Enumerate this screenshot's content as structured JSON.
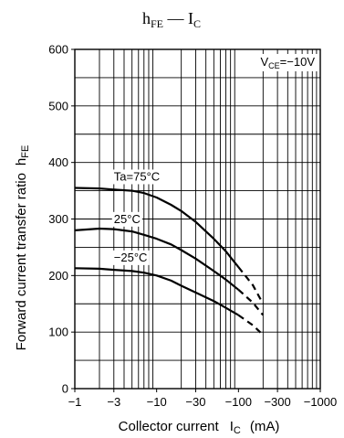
{
  "chart_data": {
    "type": "line",
    "title": "hFE — IC",
    "title_parts": {
      "main": "h",
      "main_sub": "FE",
      "sep": " — ",
      "second": "I",
      "second_sub": "C"
    },
    "xlabel_parts": {
      "text": "Collector current",
      "sym": "I",
      "sym_sub": "C",
      "unit": "(mA)"
    },
    "ylabel_parts": {
      "text": "Forward current transfer ratio",
      "sym": "h",
      "sym_sub": "FE"
    },
    "condition_parts": {
      "sym": "V",
      "sub": "CE",
      "value": "=−10V"
    },
    "legend_placement": "top-right",
    "x_scale": "log",
    "xlim": [
      -1,
      -1000
    ],
    "ylim": [
      0,
      600
    ],
    "grid": true,
    "x_ticks": [
      {
        "value": -1,
        "label": "−1"
      },
      {
        "value": -3,
        "label": "−3"
      },
      {
        "value": -10,
        "label": "−10"
      },
      {
        "value": -30,
        "label": "−30"
      },
      {
        "value": -100,
        "label": "−100"
      },
      {
        "value": -300,
        "label": "−300"
      },
      {
        "value": -1000,
        "label": "−1000"
      }
    ],
    "y_ticks": [
      {
        "value": 0,
        "label": "0"
      },
      {
        "value": 100,
        "label": "100"
      },
      {
        "value": 200,
        "label": "200"
      },
      {
        "value": 300,
        "label": "300"
      },
      {
        "value": 400,
        "label": "400"
      },
      {
        "value": 500,
        "label": "500"
      },
      {
        "value": 600,
        "label": "600"
      }
    ],
    "series": [
      {
        "name": "Ta=75°C",
        "label_at": {
          "x": -3,
          "y": 368
        },
        "points": [
          [
            -1,
            355
          ],
          [
            -2,
            354
          ],
          [
            -3,
            352
          ],
          [
            -5,
            350
          ],
          [
            -7,
            346
          ],
          [
            -10,
            338
          ],
          [
            -15,
            325
          ],
          [
            -20,
            314
          ],
          [
            -30,
            295
          ],
          [
            -50,
            265
          ],
          [
            -70,
            243
          ],
          [
            -100,
            215
          ]
        ],
        "dashed": [
          [
            -100,
            215
          ],
          [
            -150,
            183
          ],
          [
            -200,
            150
          ]
        ]
      },
      {
        "name": "25°C",
        "label_at": {
          "x": -3,
          "y": 293
        },
        "points": [
          [
            -1,
            280
          ],
          [
            -2,
            283
          ],
          [
            -3,
            282
          ],
          [
            -5,
            278
          ],
          [
            -7,
            272
          ],
          [
            -10,
            265
          ],
          [
            -15,
            255
          ],
          [
            -20,
            245
          ],
          [
            -30,
            230
          ],
          [
            -50,
            208
          ],
          [
            -70,
            193
          ],
          [
            -100,
            175
          ]
        ],
        "dashed": [
          [
            -100,
            175
          ],
          [
            -150,
            152
          ],
          [
            -200,
            130
          ]
        ]
      },
      {
        "name": "−25°C",
        "label_at": {
          "x": -3,
          "y": 225
        },
        "points": [
          [
            -1,
            213
          ],
          [
            -2,
            212
          ],
          [
            -3,
            210
          ],
          [
            -5,
            208
          ],
          [
            -7,
            205
          ],
          [
            -10,
            200
          ],
          [
            -15,
            191
          ],
          [
            -20,
            182
          ],
          [
            -30,
            170
          ],
          [
            -50,
            155
          ],
          [
            -70,
            143
          ],
          [
            -100,
            130
          ]
        ],
        "dashed": [
          [
            -100,
            130
          ],
          [
            -150,
            112
          ],
          [
            -200,
            95
          ]
        ]
      }
    ]
  }
}
